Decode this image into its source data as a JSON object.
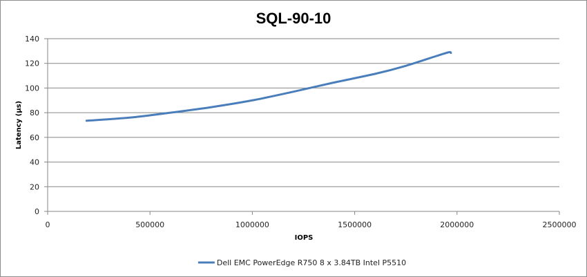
{
  "chart_data": {
    "type": "line",
    "title": "SQL-90-10",
    "xlabel": "IOPS",
    "ylabel": "Latency (µs)",
    "xlim": [
      0,
      2500000
    ],
    "ylim": [
      0,
      140
    ],
    "x_ticks": [
      "0",
      "500000",
      "1000000",
      "1500000",
      "2000000",
      "2500000"
    ],
    "y_ticks": [
      "0",
      "20",
      "40",
      "60",
      "80",
      "100",
      "120",
      "140"
    ],
    "grid": "horizontal",
    "legend_position": "bottom",
    "series": [
      {
        "name": "Dell EMC PowerEdge R750 8 x 3.84TB Intel P5510",
        "color": "#4a7ebb",
        "points": [
          {
            "x": 190000,
            "y": 73.5
          },
          {
            "x": 400000,
            "y": 76
          },
          {
            "x": 600000,
            "y": 80
          },
          {
            "x": 800000,
            "y": 84.5
          },
          {
            "x": 1000000,
            "y": 90
          },
          {
            "x": 1200000,
            "y": 97
          },
          {
            "x": 1400000,
            "y": 104.5
          },
          {
            "x": 1600000,
            "y": 111.5
          },
          {
            "x": 1750000,
            "y": 118
          },
          {
            "x": 1900000,
            "y": 126
          },
          {
            "x": 1960000,
            "y": 129
          },
          {
            "x": 1970000,
            "y": 128.5
          }
        ]
      }
    ]
  }
}
